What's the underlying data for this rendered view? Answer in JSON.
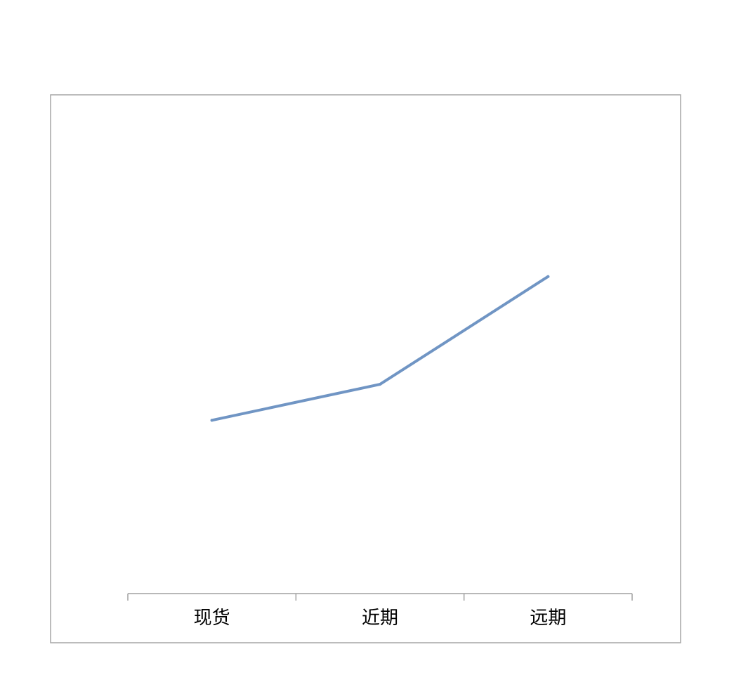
{
  "chart_data": {
    "type": "line",
    "title": "",
    "xlabel": "",
    "ylabel": "",
    "categories": [
      "现货",
      "近期",
      "远期"
    ],
    "series": [
      {
        "name": "",
        "values": [
          3,
          4,
          7
        ],
        "color": "#7095c4"
      }
    ],
    "ylim": [
      -2,
      12
    ],
    "grid": false,
    "y_axis_visible": false,
    "legend": "none"
  },
  "colors": {
    "frame": "#a6a6a6",
    "axis": "#a0a0a0",
    "line": "#7095c4"
  }
}
